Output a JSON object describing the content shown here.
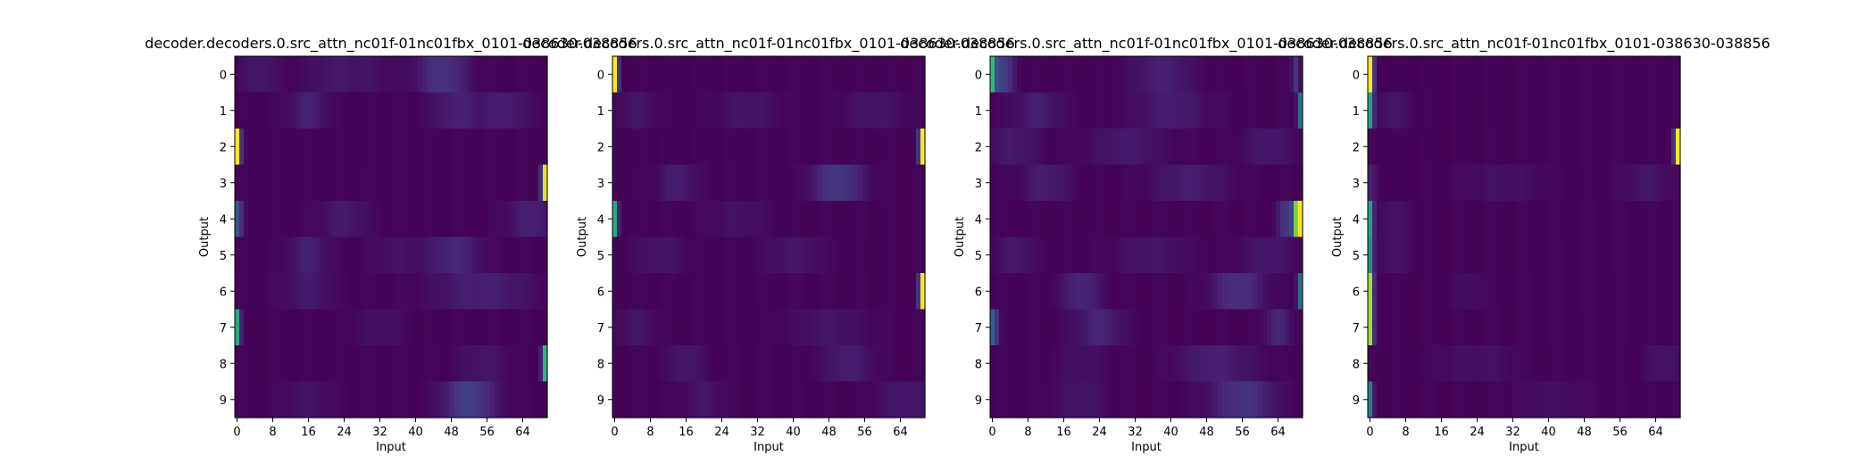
{
  "figure": {
    "background": "#ffffff",
    "colormap": "viridis",
    "colormap_stops": [
      "#440154",
      "#472c7a",
      "#3b518b",
      "#2c718e",
      "#21908d",
      "#27ad81",
      "#5cc863",
      "#aadc32",
      "#fde725"
    ]
  },
  "chart_data": [
    {
      "type": "heatmap",
      "title": "decoder.decoders.0.src_attn_nc01f-01nc01fbx_0101-038630-038856",
      "xlabel": "Input",
      "ylabel": "Output",
      "x_ticks": [
        0,
        8,
        16,
        24,
        32,
        40,
        48,
        56,
        64
      ],
      "y_ticks": [
        0,
        1,
        2,
        3,
        4,
        5,
        6,
        7,
        8,
        9
      ],
      "xlim": [
        0,
        70
      ],
      "ylim": [
        0,
        10
      ],
      "grid": false,
      "cells": [
        {
          "row": 0,
          "peaks": [
            {
              "c": 5,
              "w": 3,
              "v": 0.06
            },
            {
              "c": 20,
              "w": 4,
              "v": 0.04
            },
            {
              "c": 46,
              "w": 4,
              "v": 0.14
            },
            {
              "c": 28,
              "w": 5,
              "v": 0.04
            }
          ]
        },
        {
          "row": 1,
          "peaks": [
            {
              "c": 16,
              "w": 3,
              "v": 0.08
            },
            {
              "c": 49,
              "w": 4,
              "v": 0.08
            },
            {
              "c": 60,
              "w": 4,
              "v": 0.07
            }
          ]
        },
        {
          "row": 2,
          "peaks": [
            {
              "c": 0,
              "w": 0.5,
              "v": 1.0
            }
          ]
        },
        {
          "row": 3,
          "peaks": [
            {
              "c": 69,
              "w": 0.5,
              "v": 0.95
            }
          ]
        },
        {
          "row": 4,
          "peaks": [
            {
              "c": 0,
              "w": 0.8,
              "v": 0.25
            },
            {
              "c": 24,
              "w": 4,
              "v": 0.06
            },
            {
              "c": 66,
              "w": 4,
              "v": 0.08
            }
          ]
        },
        {
          "row": 5,
          "peaks": [
            {
              "c": 16,
              "w": 3,
              "v": 0.08
            },
            {
              "c": 49,
              "w": 4,
              "v": 0.1
            },
            {
              "c": 36,
              "w": 5,
              "v": 0.04
            }
          ]
        },
        {
          "row": 6,
          "peaks": [
            {
              "c": 16,
              "w": 4,
              "v": 0.06
            },
            {
              "c": 55,
              "w": 8,
              "v": 0.08
            }
          ]
        },
        {
          "row": 7,
          "peaks": [
            {
              "c": 0,
              "w": 0.5,
              "v": 0.6
            },
            {
              "c": 32,
              "w": 4,
              "v": 0.04
            }
          ]
        },
        {
          "row": 8,
          "peaks": [
            {
              "c": 69,
              "w": 0.5,
              "v": 0.65
            },
            {
              "c": 55,
              "w": 4,
              "v": 0.05
            }
          ]
        },
        {
          "row": 9,
          "peaks": [
            {
              "c": 52,
              "w": 4,
              "v": 0.18
            },
            {
              "c": 16,
              "w": 4,
              "v": 0.04
            }
          ]
        }
      ]
    },
    {
      "type": "heatmap",
      "title": "decoder.decoders.0.src_attn_nc01f-01nc01fbx_0101-038630-038856",
      "xlabel": "Input",
      "ylabel": "Output",
      "x_ticks": [
        0,
        8,
        16,
        24,
        32,
        40,
        48,
        56,
        64
      ],
      "y_ticks": [
        0,
        1,
        2,
        3,
        4,
        5,
        6,
        7,
        8,
        9
      ],
      "xlim": [
        0,
        70
      ],
      "ylim": [
        0,
        10
      ],
      "grid": false,
      "cells": [
        {
          "row": 0,
          "peaks": [
            {
              "c": 0,
              "w": 0.5,
              "v": 1.0
            }
          ]
        },
        {
          "row": 1,
          "peaks": [
            {
              "c": 5,
              "w": 3,
              "v": 0.05
            },
            {
              "c": 30,
              "w": 5,
              "v": 0.05
            },
            {
              "c": 58,
              "w": 5,
              "v": 0.05
            }
          ]
        },
        {
          "row": 2,
          "peaks": [
            {
              "c": 69,
              "w": 0.5,
              "v": 1.0
            }
          ]
        },
        {
          "row": 3,
          "peaks": [
            {
              "c": 14,
              "w": 3,
              "v": 0.07
            },
            {
              "c": 50,
              "w": 4,
              "v": 0.16
            }
          ]
        },
        {
          "row": 4,
          "peaks": [
            {
              "c": 0,
              "w": 0.5,
              "v": 0.6
            },
            {
              "c": 28,
              "w": 5,
              "v": 0.04
            }
          ]
        },
        {
          "row": 5,
          "peaks": [
            {
              "c": 10,
              "w": 4,
              "v": 0.05
            },
            {
              "c": 40,
              "w": 5,
              "v": 0.05
            }
          ]
        },
        {
          "row": 6,
          "peaks": [
            {
              "c": 69,
              "w": 0.5,
              "v": 1.0
            }
          ]
        },
        {
          "row": 7,
          "peaks": [
            {
              "c": 5,
              "w": 3,
              "v": 0.05
            },
            {
              "c": 48,
              "w": 6,
              "v": 0.05
            }
          ]
        },
        {
          "row": 8,
          "peaks": [
            {
              "c": 16,
              "w": 3,
              "v": 0.06
            },
            {
              "c": 52,
              "w": 4,
              "v": 0.07
            }
          ]
        },
        {
          "row": 9,
          "peaks": [
            {
              "c": 20,
              "w": 3,
              "v": 0.05
            },
            {
              "c": 65,
              "w": 4,
              "v": 0.06
            }
          ]
        }
      ]
    },
    {
      "type": "heatmap",
      "title": "decoder.decoders.0.src_attn_nc01f-01nc01fbx_0101-038630-038856",
      "xlabel": "Input",
      "ylabel": "Output",
      "x_ticks": [
        0,
        8,
        16,
        24,
        32,
        40,
        48,
        56,
        64
      ],
      "y_ticks": [
        0,
        1,
        2,
        3,
        4,
        5,
        6,
        7,
        8,
        9
      ],
      "xlim": [
        0,
        70
      ],
      "ylim": [
        0,
        10
      ],
      "grid": false,
      "cells": [
        {
          "row": 0,
          "peaks": [
            {
              "c": 0,
              "w": 0.5,
              "v": 0.55
            },
            {
              "c": 2,
              "w": 2,
              "v": 0.18
            },
            {
              "c": 38,
              "w": 5,
              "v": 0.08
            },
            {
              "c": 68,
              "w": 0.6,
              "v": 0.15
            }
          ]
        },
        {
          "row": 1,
          "peaks": [
            {
              "c": 10,
              "w": 4,
              "v": 0.07
            },
            {
              "c": 40,
              "w": 6,
              "v": 0.07
            },
            {
              "c": 69,
              "w": 0.5,
              "v": 0.35
            }
          ]
        },
        {
          "row": 2,
          "peaks": [
            {
              "c": 5,
              "w": 4,
              "v": 0.06
            },
            {
              "c": 30,
              "w": 6,
              "v": 0.06
            },
            {
              "c": 62,
              "w": 4,
              "v": 0.06
            }
          ]
        },
        {
          "row": 3,
          "peaks": [
            {
              "c": 12,
              "w": 4,
              "v": 0.07
            },
            {
              "c": 44,
              "w": 6,
              "v": 0.07
            }
          ]
        },
        {
          "row": 4,
          "peaks": [
            {
              "c": 68,
              "w": 0.5,
              "v": 0.6
            },
            {
              "c": 69,
              "w": 0.5,
              "v": 1.0
            },
            {
              "c": 66,
              "w": 1.5,
              "v": 0.15
            }
          ]
        },
        {
          "row": 5,
          "peaks": [
            {
              "c": 5,
              "w": 3,
              "v": 0.06
            },
            {
              "c": 36,
              "w": 6,
              "v": 0.05
            },
            {
              "c": 62,
              "w": 4,
              "v": 0.06
            }
          ]
        },
        {
          "row": 6,
          "peaks": [
            {
              "c": 20,
              "w": 3,
              "v": 0.1
            },
            {
              "c": 55,
              "w": 4,
              "v": 0.13
            },
            {
              "c": 69,
              "w": 0.5,
              "v": 0.35
            }
          ]
        },
        {
          "row": 7,
          "peaks": [
            {
              "c": 0,
              "w": 0.8,
              "v": 0.3
            },
            {
              "c": 24,
              "w": 4,
              "v": 0.09
            },
            {
              "c": 64,
              "w": 2,
              "v": 0.1
            }
          ]
        },
        {
          "row": 8,
          "peaks": [
            {
              "c": 50,
              "w": 6,
              "v": 0.08
            },
            {
              "c": 20,
              "w": 4,
              "v": 0.04
            }
          ]
        },
        {
          "row": 9,
          "peaks": [
            {
              "c": 56,
              "w": 5,
              "v": 0.14
            },
            {
              "c": 20,
              "w": 4,
              "v": 0.05
            }
          ]
        }
      ]
    },
    {
      "type": "heatmap",
      "title": "decoder.decoders.0.src_attn_nc01f-01nc01fbx_0101-038630-038856",
      "xlabel": "Input",
      "ylabel": "Output",
      "x_ticks": [
        0,
        8,
        16,
        24,
        32,
        40,
        48,
        56,
        64
      ],
      "y_ticks": [
        0,
        1,
        2,
        3,
        4,
        5,
        6,
        7,
        8,
        9
      ],
      "xlim": [
        0,
        70
      ],
      "ylim": [
        0,
        10
      ],
      "grid": false,
      "cells": [
        {
          "row": 0,
          "peaks": [
            {
              "c": 0,
              "w": 0.5,
              "v": 1.0
            }
          ]
        },
        {
          "row": 1,
          "peaks": [
            {
              "c": 0,
              "w": 0.5,
              "v": 0.55
            },
            {
              "c": 5,
              "w": 3,
              "v": 0.05
            }
          ]
        },
        {
          "row": 2,
          "peaks": [
            {
              "c": 69,
              "w": 0.5,
              "v": 1.0
            }
          ]
        },
        {
          "row": 3,
          "peaks": [
            {
              "c": 0,
              "w": 1,
              "v": 0.08
            },
            {
              "c": 30,
              "w": 6,
              "v": 0.04
            },
            {
              "c": 62,
              "w": 4,
              "v": 0.05
            }
          ]
        },
        {
          "row": 4,
          "peaks": [
            {
              "c": 0,
              "w": 0.5,
              "v": 0.55
            },
            {
              "c": 5,
              "w": 3,
              "v": 0.04
            }
          ]
        },
        {
          "row": 5,
          "peaks": [
            {
              "c": 0,
              "w": 0.5,
              "v": 0.5
            },
            {
              "c": 5,
              "w": 3,
              "v": 0.04
            }
          ]
        },
        {
          "row": 6,
          "peaks": [
            {
              "c": 0,
              "w": 0.5,
              "v": 0.85
            },
            {
              "c": 22,
              "w": 3,
              "v": 0.03
            }
          ]
        },
        {
          "row": 7,
          "peaks": [
            {
              "c": 0,
              "w": 0.5,
              "v": 0.85
            }
          ]
        },
        {
          "row": 8,
          "peaks": [
            {
              "c": 24,
              "w": 6,
              "v": 0.04
            },
            {
              "c": 66,
              "w": 3,
              "v": 0.05
            }
          ]
        },
        {
          "row": 9,
          "peaks": [
            {
              "c": 0,
              "w": 0.5,
              "v": 0.4
            },
            {
              "c": 40,
              "w": 6,
              "v": 0.03
            }
          ]
        }
      ]
    }
  ]
}
